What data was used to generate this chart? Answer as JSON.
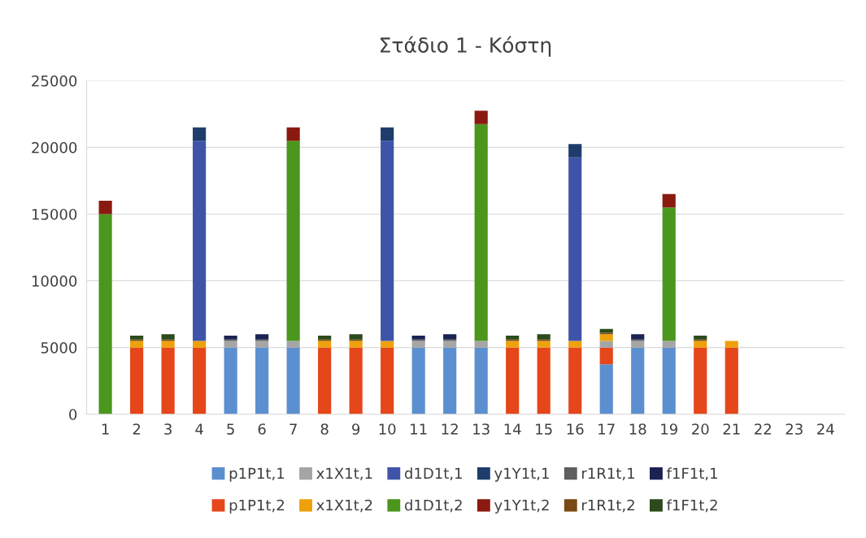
{
  "chart_data": {
    "type": "bar",
    "title": "Στάδιο 1 - Κόστη",
    "stacked": true,
    "categories": [
      "1",
      "2",
      "3",
      "4",
      "5",
      "6",
      "7",
      "8",
      "9",
      "10",
      "11",
      "12",
      "13",
      "14",
      "15",
      "16",
      "17",
      "18",
      "19",
      "20",
      "21",
      "22",
      "23",
      "24"
    ],
    "ylim": [
      0,
      25000
    ],
    "yticks": [
      0,
      5000,
      10000,
      15000,
      20000,
      25000
    ],
    "grid": "y",
    "legend": "bottom",
    "series": [
      {
        "name": "p1P1t,1",
        "color": "#5b8fd0",
        "values": [
          null,
          null,
          null,
          null,
          5000,
          5000,
          5000,
          null,
          null,
          null,
          5000,
          5000,
          5000,
          null,
          null,
          null,
          3750,
          5000,
          5000,
          null,
          null,
          null,
          null,
          null
        ]
      },
      {
        "name": "p1P1t,2",
        "color": "#e5461a",
        "values": [
          null,
          5000,
          5000,
          5000,
          null,
          null,
          null,
          5000,
          5000,
          5000,
          null,
          null,
          null,
          5000,
          5000,
          5000,
          1250,
          null,
          null,
          5000,
          5000,
          null,
          null,
          null
        ]
      },
      {
        "name": "x1X1t,1",
        "color": "#a5a5a5",
        "values": [
          null,
          null,
          null,
          null,
          500,
          500,
          500,
          null,
          null,
          null,
          500,
          500,
          500,
          null,
          null,
          null,
          500,
          500,
          500,
          null,
          null,
          null,
          null,
          null
        ]
      },
      {
        "name": "x1X1t,2",
        "color": "#eea10c",
        "values": [
          null,
          500,
          500,
          500,
          null,
          null,
          null,
          500,
          500,
          500,
          null,
          null,
          null,
          500,
          500,
          500,
          500,
          null,
          null,
          500,
          500,
          null,
          null,
          null
        ]
      },
      {
        "name": "d1D1t,1",
        "color": "#3f54a8",
        "values": [
          null,
          null,
          null,
          15000,
          null,
          null,
          null,
          null,
          null,
          15000,
          null,
          null,
          null,
          null,
          null,
          13750,
          null,
          null,
          null,
          null,
          null,
          null,
          null,
          null
        ]
      },
      {
        "name": "d1D1t,2",
        "color": "#4b961c",
        "values": [
          15000,
          null,
          null,
          null,
          null,
          null,
          15000,
          null,
          null,
          null,
          null,
          null,
          16250,
          null,
          null,
          null,
          null,
          null,
          10000,
          null,
          null,
          null,
          null,
          null
        ]
      },
      {
        "name": "y1Y1t,1",
        "color": "#1e3d6c",
        "values": [
          null,
          null,
          null,
          1000,
          null,
          null,
          null,
          null,
          null,
          1000,
          null,
          null,
          null,
          null,
          null,
          1000,
          null,
          null,
          null,
          null,
          null,
          null,
          null,
          null
        ]
      },
      {
        "name": "y1Y1t,2",
        "color": "#8a1a10",
        "values": [
          1000,
          null,
          null,
          null,
          null,
          null,
          1000,
          null,
          null,
          null,
          null,
          null,
          1000,
          null,
          null,
          null,
          null,
          null,
          1000,
          null,
          null,
          null,
          null,
          null
        ]
      },
      {
        "name": "r1R1t,1",
        "color": "#5f5f5f",
        "values": [
          null,
          null,
          null,
          null,
          100,
          100,
          null,
          null,
          null,
          null,
          100,
          100,
          null,
          null,
          null,
          null,
          null,
          100,
          null,
          null,
          null,
          null,
          null,
          null
        ]
      },
      {
        "name": "r1R1t,2",
        "color": "#7a4a12",
        "values": [
          null,
          100,
          100,
          null,
          null,
          null,
          null,
          100,
          100,
          null,
          null,
          null,
          null,
          100,
          100,
          null,
          100,
          null,
          null,
          100,
          null,
          null,
          null,
          null
        ]
      },
      {
        "name": "f1F1t,1",
        "color": "#1a2352",
        "values": [
          null,
          null,
          null,
          null,
          300,
          400,
          null,
          null,
          null,
          null,
          300,
          400,
          null,
          null,
          null,
          null,
          null,
          400,
          null,
          null,
          null,
          null,
          null,
          null
        ]
      },
      {
        "name": "f1F1t,2",
        "color": "#2c4a1a",
        "values": [
          null,
          300,
          400,
          null,
          null,
          null,
          null,
          300,
          400,
          null,
          null,
          null,
          null,
          300,
          400,
          null,
          300,
          null,
          null,
          300,
          null,
          null,
          null,
          null
        ]
      }
    ]
  }
}
